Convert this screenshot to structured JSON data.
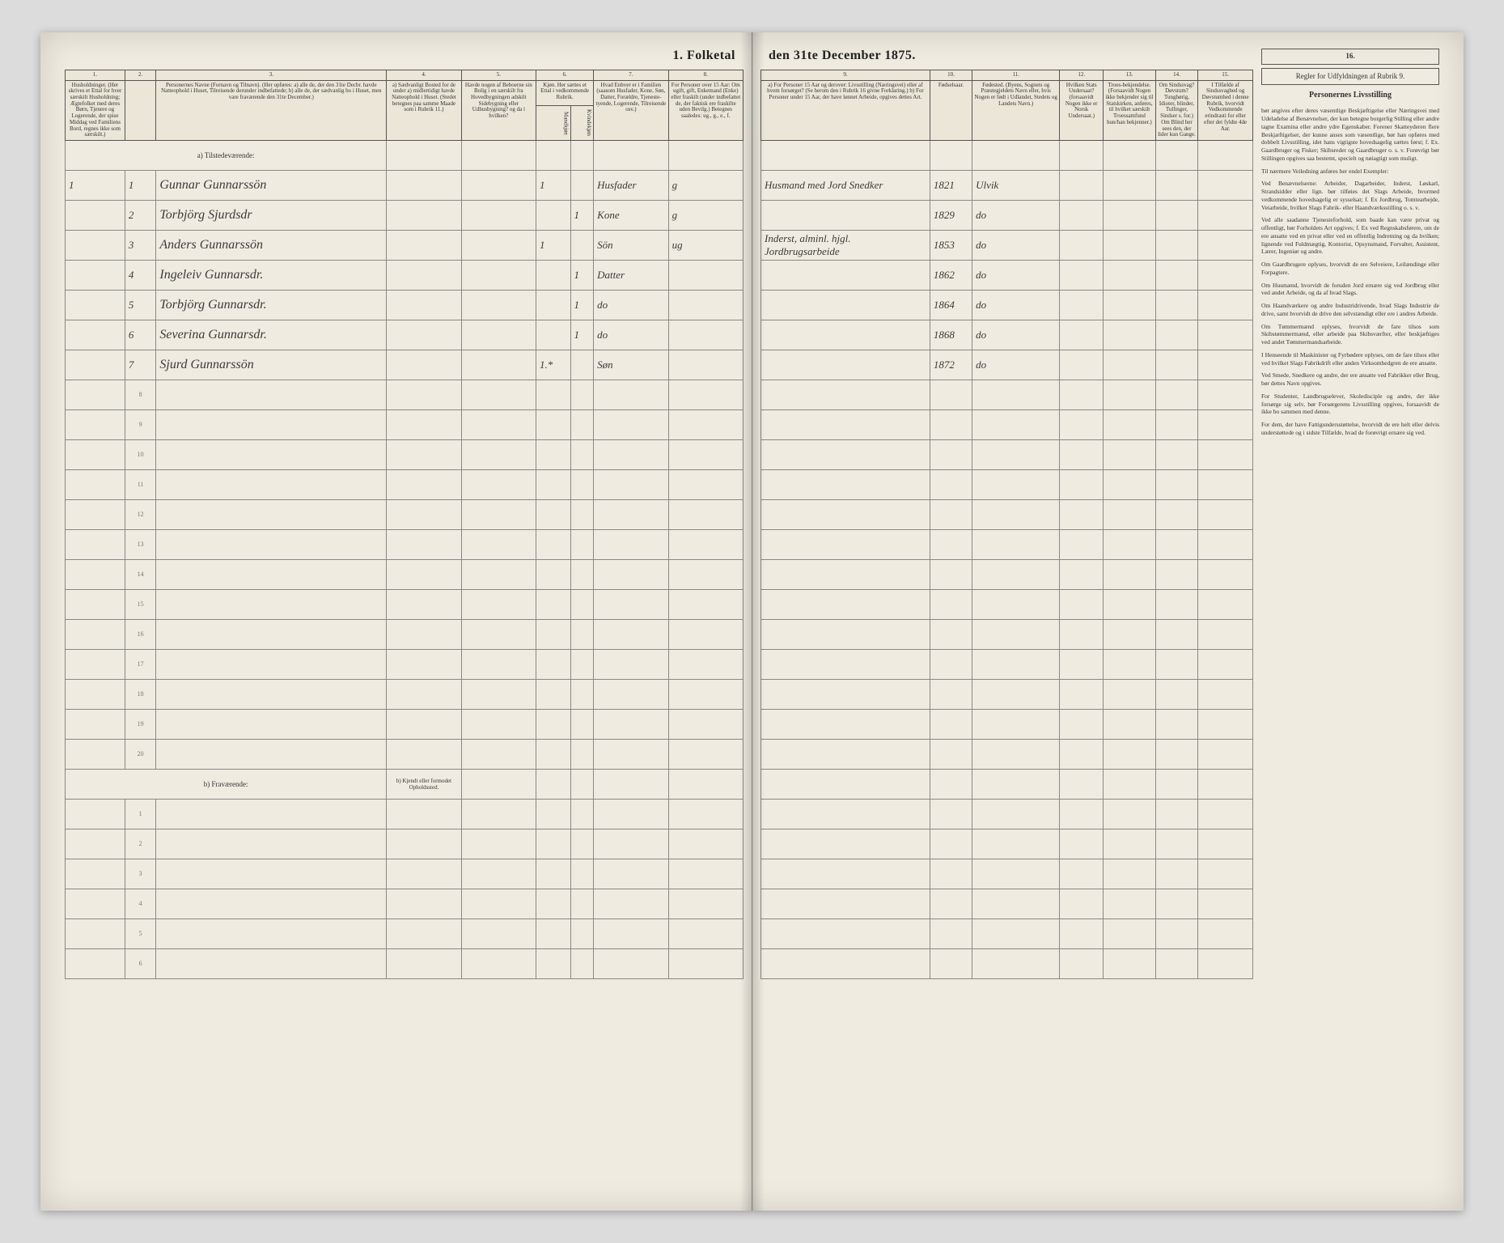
{
  "title_left": "1. Folketal",
  "title_right": "den 31te December 1875.",
  "columns": {
    "c1": "1.",
    "c2": "2.",
    "c3": "3.",
    "c4": "4.",
    "c5": "5.",
    "c6": "6.",
    "c7": "7.",
    "c8": "8.",
    "c9": "9.",
    "c10": "10.",
    "c11": "11.",
    "c12": "12.",
    "c13": "13.",
    "c14": "14.",
    "c15": "15.",
    "c16": "16."
  },
  "headers": {
    "h1": "Husholdninger. (Her skrives et Ettal for hver særskilt Husholdning; Ægtefolket med deres Børn, Tjenere og Logerende, der spise Middag ved Familiens Bord, regnes ikke som særskilt.)",
    "h3": "Personernes Navne (Fornavn og Tilnavn). (Her opføres: a) alle de, der den 31te Decbr. havde Natteophold i Huset, Tilreisende derunder indbefattede; b) alle de, der sædvanlig bo i Huset, men vare fraværende den 31te December.)",
    "h4": "a) Sædvanligt Bosted for de under a) midlertidigt havde Natteophold i Huset. (Stedet betegnes paa samme Maade som i Rubrik 11.)",
    "h5": "Havde nogen af Beboerne sin Bolig i en særskilt fra Hovedbygningen adskilt Sidebygning eller Udhusbygning? og da i hvilken?",
    "h6": "Kjøn. Her sættes et Ettal i vedkommende Rubrik.",
    "h6a": "Mandkjøn",
    "h6b": "Kvindekjøn",
    "h7": "Hvad Enhver er i Familien (saasom Husfader, Kone, Søn, Datter, Forældre, Tjeneste-tyende, Logerende, Tilreisende osv.)",
    "h8": "For Personer over 15 Aar: Om ugift, gift, Enkemand (Enke) eller fraskilt (under indbefattet de, der faktisk ere fraskilte uden Bevilg.) Betegnes saaledes: ug., g., e., f.",
    "h9": "a) For Personer 15 Aar og derover: Livsstilling (Næringsvei) eller af hvem forsørget? (Se herom den i Rubrik 16 givne Forklaring.) b) For Personer under 15 Aar, der have lønnet Arbeide, opgives dettes Art.",
    "h10": "Fødselsaar.",
    "h11": "Fødested. (Byens, Sognets og Præstegjeldets Navn eller, hvis Nogen er født i Udlandet, Stedets og Landets Navn.)",
    "h12": "Hvilken Stats Undersaat? (forsaavidt Nogen ikke er Norsk Undersaat.)",
    "h13": "Troes-bekjendelse. (Forsaavidt Nogen ikke bekjender sig til Statskirken, anføres, til hvilket særskilt Troessamfund hun/han bekjenner.)",
    "h14": "Om Sindssvag? Døvstum? Tunghørig, Idioter, blinder, Tullinger, Sindser s. for.) Om Blind her sees den, der lider kun Gange.",
    "h15": "I Tilfælde af Sindssvaghed og Døvstumhed i denne Rubrik, hvorvidt Vedkommende erindrasti for eller efter det fyldte 4de Aar.",
    "h16": "Regler for Udfyldningen af Rubrik 9."
  },
  "section_a": "a) Tilstedeværende:",
  "section_b": "b) Fraværende:",
  "section_b_right": "b) Kjendt eller formodet Opholdssted.",
  "rows": [
    {
      "num": "1",
      "hh": "1",
      "name": "Gunnar Gunnarssön",
      "sex_m": "1",
      "sex_f": "",
      "relation": "Husfader",
      "status": "g",
      "occupation": "Husmand med Jord Snedker",
      "year": "1821",
      "birthplace": "Ulvik"
    },
    {
      "num": "",
      "hh": "2",
      "name": "Torbjörg Sjurdsdr",
      "sex_m": "",
      "sex_f": "1",
      "relation": "Kone",
      "status": "g",
      "occupation": "",
      "year": "1829",
      "birthplace": "do"
    },
    {
      "num": "",
      "hh": "3",
      "name": "Anders Gunnarssön",
      "sex_m": "1",
      "sex_f": "",
      "relation": "Sön",
      "status": "ug",
      "occupation": "Inderst, alminl. hjgl. Jordbrugsarbeide",
      "year": "1853",
      "birthplace": "do"
    },
    {
      "num": "",
      "hh": "4",
      "name": "Ingeleiv Gunnarsdr.",
      "sex_m": "",
      "sex_f": "1",
      "relation": "Datter",
      "status": "",
      "occupation": "",
      "year": "1862",
      "birthplace": "do"
    },
    {
      "num": "",
      "hh": "5",
      "name": "Torbjörg Gunnarsdr.",
      "sex_m": "",
      "sex_f": "1",
      "relation": "do",
      "status": "",
      "occupation": "",
      "year": "1864",
      "birthplace": "do"
    },
    {
      "num": "",
      "hh": "6",
      "name": "Severina Gunnarsdr.",
      "sex_m": "",
      "sex_f": "1",
      "relation": "do",
      "status": "",
      "occupation": "",
      "year": "1868",
      "birthplace": "do"
    },
    {
      "num": "",
      "hh": "7",
      "name": "Sjurd Gunnarssön",
      "sex_m": "1.*",
      "sex_f": "",
      "relation": "Søn",
      "status": "",
      "occupation": "",
      "year": "1872",
      "birthplace": "do"
    }
  ],
  "empty_rows_a": [
    "8",
    "9",
    "10",
    "11",
    "12",
    "13",
    "14",
    "15",
    "16",
    "17",
    "18",
    "19",
    "20"
  ],
  "empty_rows_b": [
    "1",
    "2",
    "3",
    "4",
    "5",
    "6"
  ],
  "instructions": {
    "title": "Personernes Livsstilling",
    "p1": "bør angives efter deres væsentlige Beskjæftigelse eller Næringsvei med Udeladelse af Benævnelser, der kun betegne borgerlig Stilling eller andre tagne Examina eller andre ydre Egenskaber. Forener Skatteyderen flere Beskjæftigelser, der kunne anses som væsentlige, bør han opføres med dobbelt Livsstilling, idet hans vigtigste hovedsagelig sættes først; f. Ex. Gaardbruger og Fisker; Skibsreder og Gaardbruger o. s. v. Forøvrigt bør Stillingen opgives saa bestemt, specielt og nøiagtigt som muligt.",
    "p2": "Til nærmere Veiledning anføres her endel Exempler:",
    "p3": "Ved Benævnelserne: Arbeider, Dagarbeider, Inderst, Løskarl, Strandsidder eller lign. bør tilføies det Slags Arbeide, hvormed vedkommende hovedsagelig er sysselsat; f. Ex Jordbrug, Tomtearbejde, Veiarbeide, hvilket Slags Fabrik- eller Haandværksstilling o. s. v.",
    "p4": "Ved alle saadanne Tjenesteforhold, som baade kan være privat og offentligt, bør Forholdets Art opgives; f. Ex ved Regnskabsførere, om de ere ansatte ved en privat eller ved en offentlig Indretning og da hvilken; lignende ved Fuldmægtig, Kontorist, Opsynsmand, Forvalter, Assistent, Lærer, Ingeniør og andre.",
    "p5": "Om Gaardbrugere oplyses, hvorvidt de ere Selveiere, Leilændinge eller Forpagtere.",
    "p6": "Om Husmænd, hvorvidt de foruden Jord ernære sig ved Jordbrug eller ved andet Arbeide, og da af hvad Slags.",
    "p7": "Om Haandværkere og andre Industridrivende, hvad Slags Industrie de drive, samt hvorvidt de drive den selvstændigt eller ere i andres Arbeide.",
    "p8": "Om Tømmermænd oplyses, hvorvidt de fare tilsos som Skibstømmermænd, eller arbeide paa Skibsværfter, eller beskjæftiges ved andet Tømmermandsarbeide.",
    "p9": "I Henseende til Maskinister og Fyrbødere oplyses, om de fare tilsos eller ved hvilket Slags Fabrikdrift eller anden Virksomhedgren de ere ansatte.",
    "p10": "Ved Smede, Snedkere og andre, der ere ansatte ved Fabrikker eller Brug, bør dettes Navn opgives.",
    "p11": "For Studenter, Landbrugselever, Skoledisciple og andre, der ikke forsørge sig selv, bør Forsørgerens Livsstilling opgives, forsaavidt de ikke bo sammen med denne.",
    "p12": "For dem, der have Fattigundersstøttelse, hvorvidt de ere helt eller delvis understøttede og i sidste Tilfælde, hvad de forøvrigt ernære sig ved."
  },
  "colors": {
    "paper": "#f0ebe0",
    "ink": "#333333",
    "handwriting": "#3a3a3a",
    "border": "#555555"
  }
}
